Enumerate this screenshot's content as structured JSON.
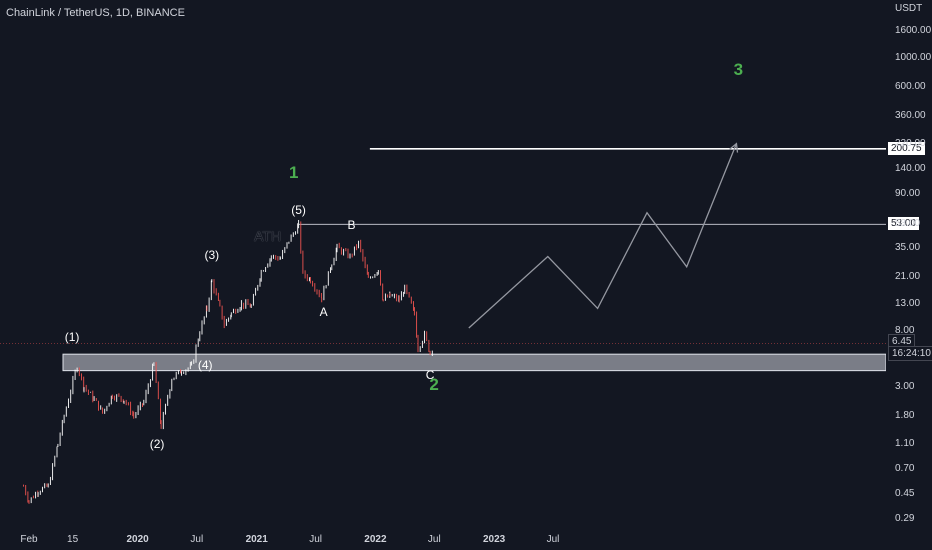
{
  "header": {
    "title": "ChainLink / TetherUS, 1D, BINANCE"
  },
  "price_axis": {
    "currency": "USDT",
    "ticks": [
      "1600.00",
      "1000.00",
      "600.00",
      "360.00",
      "220.00",
      "140.00",
      "90.00",
      "53.00",
      "35.00",
      "21.00",
      "13.00",
      "8.00",
      "3.00",
      "1.80",
      "1.10",
      "0.70",
      "0.45",
      "0.29"
    ],
    "badges": {
      "target": "200.75",
      "level": "53.00",
      "last_price": "6.45",
      "countdown": "16:24:10"
    }
  },
  "time_axis": {
    "ticks": [
      {
        "label": "Feb",
        "bold": false
      },
      {
        "label": "15",
        "bold": false
      },
      {
        "label": "2020",
        "bold": true
      },
      {
        "label": "Jul",
        "bold": false
      },
      {
        "label": "2021",
        "bold": true
      },
      {
        "label": "Jul",
        "bold": false
      },
      {
        "label": "2022",
        "bold": true
      },
      {
        "label": "Jul",
        "bold": false
      },
      {
        "label": "2023",
        "bold": true
      },
      {
        "label": "Jul",
        "bold": false
      }
    ]
  },
  "annotations": {
    "wave_labels": [
      "(1)",
      "(2)",
      "(3)",
      "(4)",
      "(5)",
      "A",
      "B",
      "C"
    ],
    "ath": "ATH",
    "major_labels": [
      "1",
      "2",
      "3"
    ]
  },
  "colors": {
    "background": "#131722",
    "up": "#ffffff",
    "down": "#ef5350",
    "green": "#4caf50",
    "projection": "#9598a1",
    "zone": "#cfd2da"
  },
  "chart_data": {
    "type": "candlestick",
    "title": "ChainLink / TetherUS, 1D, BINANCE",
    "y_scale": "log",
    "y_unit": "USDT",
    "ylim": [
      0.25,
      2400
    ],
    "xlim": [
      "2019-01-10",
      "2023-10-15"
    ],
    "price_path": [
      {
        "date": "2019-01-15",
        "price": 0.52
      },
      {
        "date": "2019-02-01",
        "price": 0.4
      },
      {
        "date": "2019-03-01",
        "price": 0.48
      },
      {
        "date": "2019-04-01",
        "price": 0.52
      },
      {
        "date": "2019-05-01",
        "price": 1.1
      },
      {
        "date": "2019-05-20",
        "price": 1.8
      },
      {
        "date": "2019-06-29",
        "price": 4.4
      },
      {
        "date": "2019-07-20",
        "price": 3.0
      },
      {
        "date": "2019-08-20",
        "price": 2.4
      },
      {
        "date": "2019-09-15",
        "price": 1.9
      },
      {
        "date": "2019-10-15",
        "price": 2.6
      },
      {
        "date": "2019-11-20",
        "price": 2.4
      },
      {
        "date": "2019-12-20",
        "price": 1.8
      },
      {
        "date": "2020-01-20",
        "price": 2.3
      },
      {
        "date": "2020-02-20",
        "price": 4.5
      },
      {
        "date": "2020-03-13",
        "price": 1.5
      },
      {
        "date": "2020-04-15",
        "price": 3.5
      },
      {
        "date": "2020-05-15",
        "price": 4.0
      },
      {
        "date": "2020-06-15",
        "price": 4.3
      },
      {
        "date": "2020-07-10",
        "price": 8.0
      },
      {
        "date": "2020-08-01",
        "price": 12.0
      },
      {
        "date": "2020-08-16",
        "price": 19.5
      },
      {
        "date": "2020-09-10",
        "price": 12.0
      },
      {
        "date": "2020-09-23",
        "price": 9.0
      },
      {
        "date": "2020-10-15",
        "price": 11.0
      },
      {
        "date": "2020-11-15",
        "price": 13.0
      },
      {
        "date": "2020-12-15",
        "price": 12.5
      },
      {
        "date": "2021-01-15",
        "price": 23.0
      },
      {
        "date": "2021-02-15",
        "price": 30.0
      },
      {
        "date": "2021-03-15",
        "price": 29.0
      },
      {
        "date": "2021-04-10",
        "price": 40.0
      },
      {
        "date": "2021-05-10",
        "price": 52.0
      },
      {
        "date": "2021-05-23",
        "price": 22.0
      },
      {
        "date": "2021-06-15",
        "price": 20.0
      },
      {
        "date": "2021-07-20",
        "price": 14.5
      },
      {
        "date": "2021-08-20",
        "price": 27.0
      },
      {
        "date": "2021-09-05",
        "price": 35.0
      },
      {
        "date": "2021-10-15",
        "price": 30.0
      },
      {
        "date": "2021-11-10",
        "price": 38.0
      },
      {
        "date": "2021-12-10",
        "price": 20.0
      },
      {
        "date": "2022-01-10",
        "price": 24.0
      },
      {
        "date": "2022-01-25",
        "price": 14.0
      },
      {
        "date": "2022-02-15",
        "price": 15.0
      },
      {
        "date": "2022-03-15",
        "price": 14.0
      },
      {
        "date": "2022-04-01",
        "price": 17.0
      },
      {
        "date": "2022-05-01",
        "price": 11.0
      },
      {
        "date": "2022-05-12",
        "price": 6.0
      },
      {
        "date": "2022-06-01",
        "price": 7.5
      },
      {
        "date": "2022-06-18",
        "price": 5.5
      },
      {
        "date": "2022-07-01",
        "price": 6.45
      }
    ],
    "last_price": 6.45,
    "horizontal_lines": [
      {
        "price": 200.75,
        "label": "200.75",
        "from": "2021-12-15"
      },
      {
        "price": 53.0,
        "label": "53.00",
        "from": "2021-05-10"
      }
    ],
    "support_zone": {
      "low": 4.0,
      "high": 5.35
    },
    "projection_path": [
      {
        "date": "2022-10-15",
        "price": 8.5
      },
      {
        "date": "2023-06-15",
        "price": 30.0
      },
      {
        "date": "2023-11-15",
        "price": 12.0
      },
      {
        "date": "2024-04-15",
        "price": 65.0
      },
      {
        "date": "2024-08-15",
        "price": 25.0
      },
      {
        "date": "2025-01-15",
        "price": 220.0
      }
    ],
    "wave_labels": [
      {
        "text": "(1)",
        "date": "2019-06-29",
        "price": 4.4
      },
      {
        "text": "(2)",
        "date": "2020-03-13",
        "price": 1.5
      },
      {
        "text": "(3)",
        "date": "2020-08-16",
        "price": 19.5
      },
      {
        "text": "(4)",
        "date": "2020-09-23",
        "price": 9.0
      },
      {
        "text": "(5)",
        "date": "2021-05-10",
        "price": 52.0
      },
      {
        "text": "A",
        "date": "2021-07-20",
        "price": 14.5
      },
      {
        "text": "B",
        "date": "2021-11-10",
        "price": 38.0
      },
      {
        "text": "C",
        "date": "2022-06-18",
        "price": 5.5
      }
    ],
    "major_labels": [
      {
        "text": "1",
        "date": "2021-05-01",
        "price": 52.0
      },
      {
        "text": "2",
        "date": "2022-06-18",
        "price": 5.5
      },
      {
        "text": "3",
        "date": "2025-01-15",
        "price": 220.0
      }
    ]
  }
}
